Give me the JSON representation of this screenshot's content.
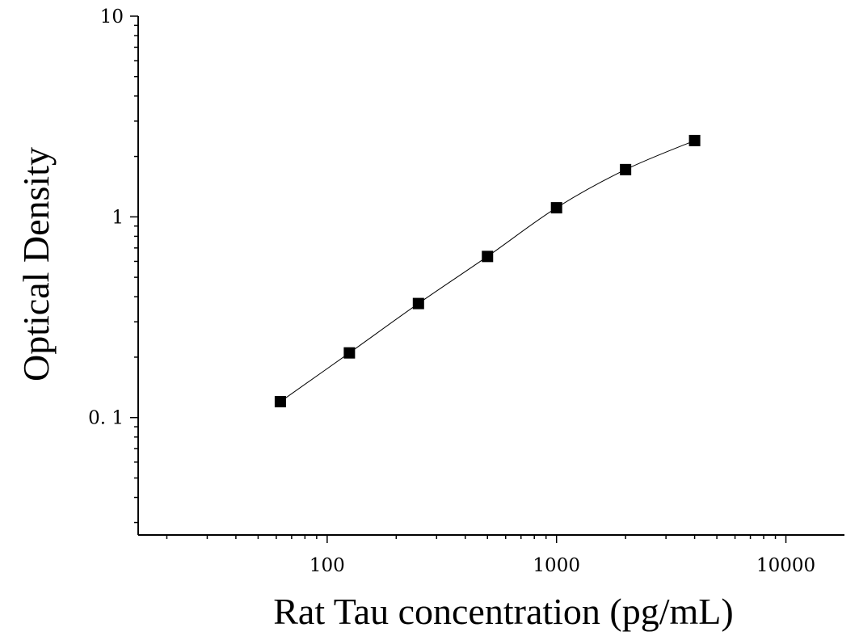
{
  "chart_data": {
    "type": "scatter",
    "title": "",
    "xlabel": "Rat Tau concentration (pg/mL)",
    "ylabel": "Optical Density",
    "x_scale": "log",
    "y_scale": "log",
    "xlim": [
      15,
      18000
    ],
    "ylim": [
      0.026,
      10
    ],
    "x_ticks": [
      {
        "value": 100,
        "label": "100"
      },
      {
        "value": 1000,
        "label": "1000"
      },
      {
        "value": 10000,
        "label": "10000"
      }
    ],
    "y_ticks": [
      {
        "value": 0.1,
        "label": "0. 1"
      },
      {
        "value": 1,
        "label": "1"
      },
      {
        "value": 10,
        "label": "10"
      }
    ],
    "series": [
      {
        "x": [
          62.5,
          125,
          250,
          500,
          1000,
          2000,
          4000
        ],
        "y": [
          0.12,
          0.21,
          0.37,
          0.635,
          1.11,
          1.72,
          2.4
        ]
      }
    ],
    "fit_curve": true,
    "grid": false,
    "legend": "none",
    "colors": {
      "marker": "#000000",
      "line": "#000000"
    }
  }
}
